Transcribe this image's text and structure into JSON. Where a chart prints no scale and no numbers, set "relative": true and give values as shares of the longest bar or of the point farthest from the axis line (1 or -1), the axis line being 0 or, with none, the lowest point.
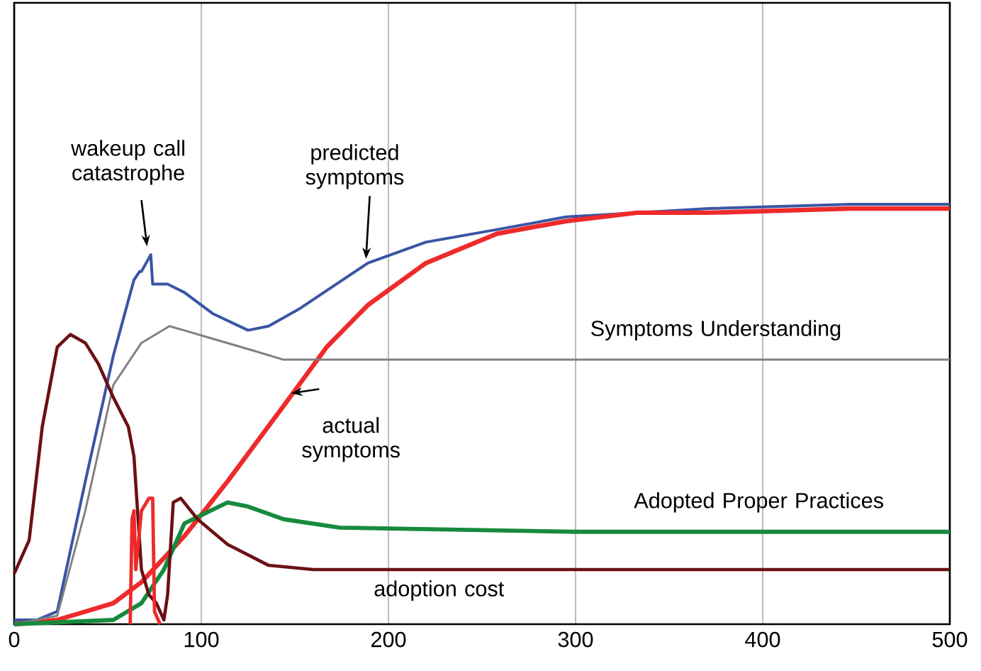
{
  "chart_data": {
    "type": "line",
    "relative": true,
    "xlim": [
      0,
      500
    ],
    "xticks": [
      0,
      100,
      200,
      300,
      400,
      500
    ],
    "grid": "x",
    "marker": "none",
    "line_style": "solid",
    "annotations": [
      "wakeup call catastrophe"
    ],
    "series": [
      {
        "name": "predicted symptoms",
        "color": "#3a55a4",
        "x": [
          0,
          12,
          23,
          38,
          53,
          64,
          67,
          68,
          73,
          74,
          76,
          82,
          91,
          106,
          125,
          136,
          152,
          189,
          220,
          258,
          295,
          333,
          371,
          447,
          500
        ],
        "values": [
          0.01,
          0.01,
          0.03,
          0.34,
          0.64,
          0.82,
          0.84,
          0.84,
          0.88,
          0.81,
          0.81,
          0.81,
          0.79,
          0.74,
          0.7,
          0.71,
          0.75,
          0.86,
          0.91,
          0.94,
          0.97,
          0.98,
          0.99,
          1.0,
          1.0
        ]
      },
      {
        "name": "actual symptoms",
        "color": "#ee2a2b",
        "x": [
          0,
          23,
          38,
          53,
          68,
          91,
          114,
          144,
          167,
          189,
          220,
          258,
          295,
          333,
          371,
          447,
          500
        ],
        "values": [
          0,
          0.01,
          0.03,
          0.05,
          0.1,
          0.21,
          0.34,
          0.52,
          0.66,
          0.76,
          0.86,
          0.93,
          0.96,
          0.98,
          0.98,
          0.99,
          0.99
        ]
      },
      {
        "name": "Symptoms Understanding",
        "color": "#808080",
        "x": [
          0,
          23,
          38,
          53,
          68,
          83,
          106,
          129,
          144,
          220,
          500
        ],
        "values": [
          0,
          0.02,
          0.27,
          0.57,
          0.67,
          0.71,
          0.68,
          0.65,
          0.63,
          0.63,
          0.63
        ]
      },
      {
        "name": "Adopted Proper Practices",
        "color": "#178a3e",
        "x": [
          0,
          53,
          68,
          80,
          91,
          114,
          125,
          144,
          174,
          300,
          500
        ],
        "values": [
          0,
          0.01,
          0.05,
          0.13,
          0.24,
          0.29,
          0.28,
          0.25,
          0.23,
          0.22,
          0.22
        ]
      },
      {
        "name": "adoption cost",
        "color": "#6b1014",
        "x": [
          0,
          8,
          15,
          23,
          30,
          38,
          45,
          53,
          61,
          64,
          68,
          72,
          76,
          80,
          82,
          85,
          89,
          98,
          114,
          136,
          160,
          500
        ],
        "values": [
          0.12,
          0.2,
          0.47,
          0.66,
          0.69,
          0.67,
          0.62,
          0.54,
          0.47,
          0.4,
          0.13,
          0.07,
          0.05,
          0.01,
          0.07,
          0.29,
          0.3,
          0.25,
          0.19,
          0.14,
          0.13,
          0.13
        ]
      },
      {
        "color": "#ee2a2b",
        "x": [
          62,
          63,
          64,
          65,
          68,
          72,
          74,
          75,
          78
        ],
        "values": [
          0,
          0.25,
          0.27,
          0.13,
          0.27,
          0.3,
          0.3,
          0.03,
          0
        ]
      }
    ]
  }
}
